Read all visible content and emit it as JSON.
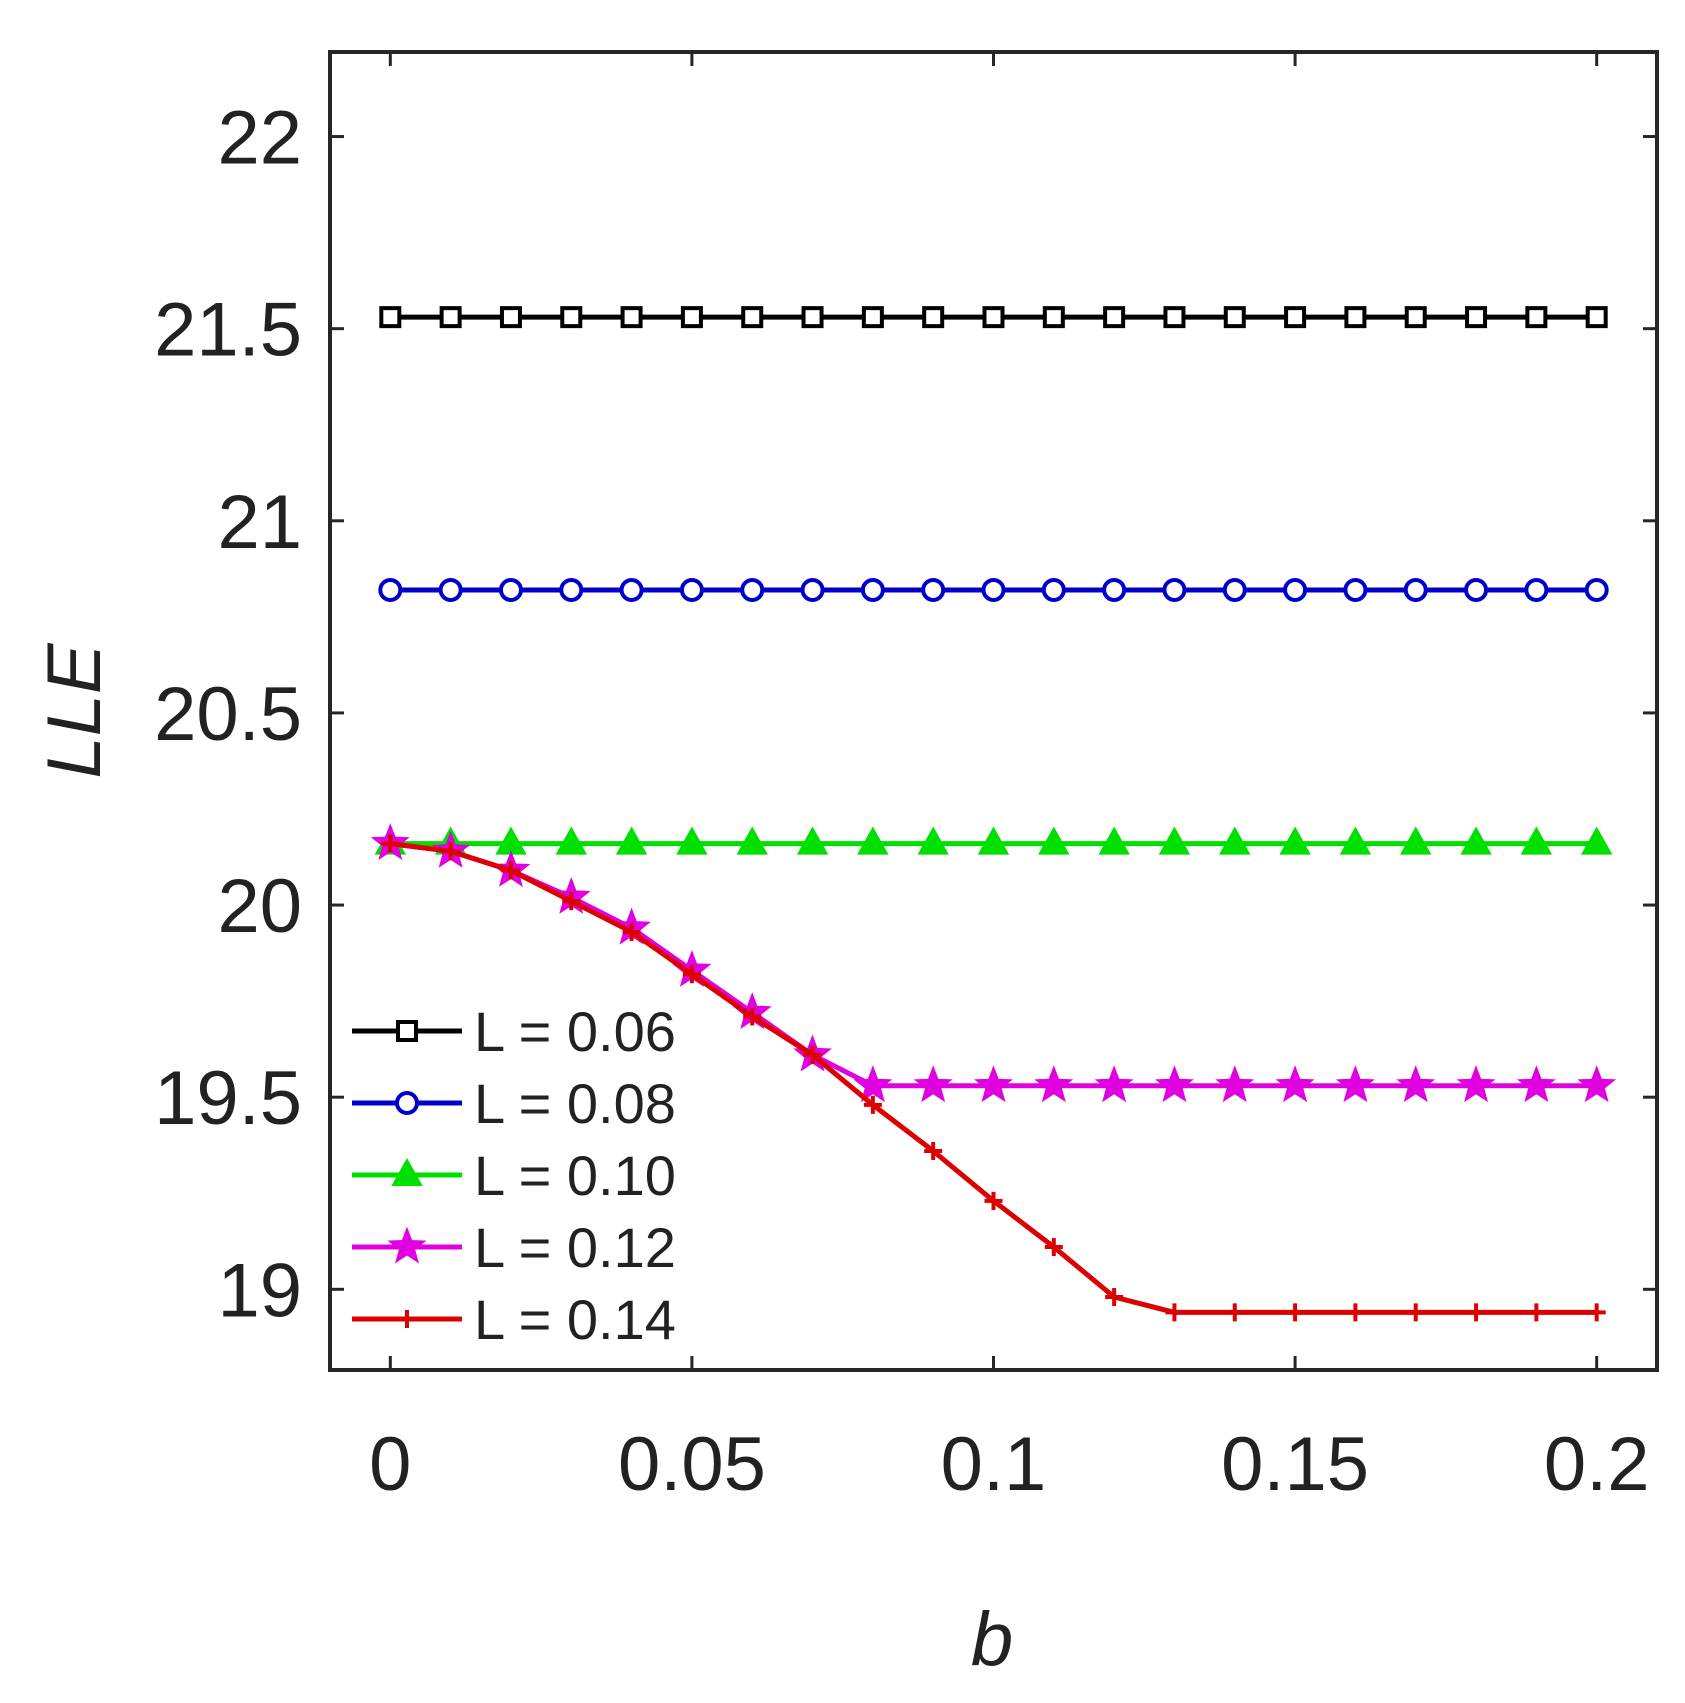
{
  "chart_data": {
    "type": "line",
    "title": "",
    "xlabel": "b",
    "ylabel": "LLE",
    "xlim": [
      -0.01,
      0.21
    ],
    "ylim": [
      18.79,
      22.22
    ],
    "xticks": [
      0,
      0.05,
      0.1,
      0.15,
      0.2
    ],
    "xtick_labels": [
      "0",
      "0.05",
      "0.1",
      "0.15",
      "0.2"
    ],
    "yticks": [
      19,
      19.5,
      20,
      20.5,
      21,
      21.5,
      22
    ],
    "ytick_labels": [
      "19",
      "19.5",
      "20",
      "20.5",
      "21",
      "21.5",
      "22"
    ],
    "grid": false,
    "legend_position": "bottom-left",
    "x": [
      0,
      0.01,
      0.02,
      0.03,
      0.04,
      0.05,
      0.06,
      0.07,
      0.08,
      0.09,
      0.1,
      0.11,
      0.12,
      0.13,
      0.14,
      0.15,
      0.16,
      0.17,
      0.18,
      0.19,
      0.2
    ],
    "series": [
      {
        "name": "L = 0.06",
        "color": "#000000",
        "marker": "square",
        "values": [
          21.53,
          21.53,
          21.53,
          21.53,
          21.53,
          21.53,
          21.53,
          21.53,
          21.53,
          21.53,
          21.53,
          21.53,
          21.53,
          21.53,
          21.53,
          21.53,
          21.53,
          21.53,
          21.53,
          21.53,
          21.53
        ]
      },
      {
        "name": "L = 0.08",
        "color": "#0000cc",
        "marker": "circle",
        "values": [
          20.82,
          20.82,
          20.82,
          20.82,
          20.82,
          20.82,
          20.82,
          20.82,
          20.82,
          20.82,
          20.82,
          20.82,
          20.82,
          20.82,
          20.82,
          20.82,
          20.82,
          20.82,
          20.82,
          20.82,
          20.82
        ]
      },
      {
        "name": "L = 0.10",
        "color": "#00e000",
        "marker": "triangle",
        "values": [
          20.16,
          20.16,
          20.16,
          20.16,
          20.16,
          20.16,
          20.16,
          20.16,
          20.16,
          20.16,
          20.16,
          20.16,
          20.16,
          20.16,
          20.16,
          20.16,
          20.16,
          20.16,
          20.16,
          20.16,
          20.16
        ]
      },
      {
        "name": "L = 0.12",
        "color": "#e000e0",
        "marker": "star",
        "values": [
          20.16,
          20.14,
          20.09,
          20.02,
          19.94,
          19.83,
          19.72,
          19.61,
          19.53,
          19.53,
          19.53,
          19.53,
          19.53,
          19.53,
          19.53,
          19.53,
          19.53,
          19.53,
          19.53,
          19.53,
          19.53
        ]
      },
      {
        "name": "L = 0.14",
        "color": "#dd0000",
        "marker": "plus",
        "values": [
          20.16,
          20.14,
          20.09,
          20.01,
          19.93,
          19.82,
          19.71,
          19.61,
          19.48,
          19.36,
          19.23,
          19.11,
          18.98,
          18.94,
          18.94,
          18.94,
          18.94,
          18.94,
          18.94,
          18.94,
          18.94
        ]
      }
    ]
  }
}
